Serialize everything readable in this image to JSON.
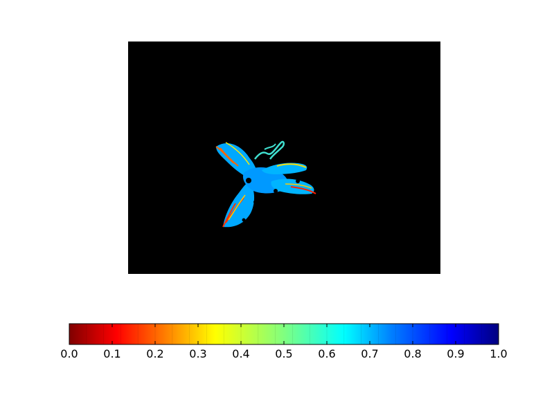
{
  "chart_data": {
    "type": "heatmap",
    "title": "",
    "colormap": "jet_r",
    "background_color": "#000000",
    "colorbar": {
      "orientation": "horizontal",
      "range": [
        0.0,
        1.0
      ],
      "ticks": [
        0.0,
        0.1,
        0.2,
        0.3,
        0.4,
        0.5,
        0.6,
        0.7,
        0.8,
        0.9,
        1.0
      ],
      "tick_labels": [
        "0.0",
        "0.1",
        "0.2",
        "0.3",
        "0.4",
        "0.5",
        "0.6",
        "0.7",
        "0.8",
        "0.9",
        "1.0"
      ],
      "colors": [
        "#800000",
        "#ff0000",
        "#ff8000",
        "#ffff00",
        "#80ff80",
        "#00ffff",
        "#0080ff",
        "#0000ff",
        "#000080"
      ]
    },
    "image_content": "leaf-like segmented region",
    "dominant_value": 0.7,
    "edge_values": [
      0.0,
      0.3
    ]
  }
}
